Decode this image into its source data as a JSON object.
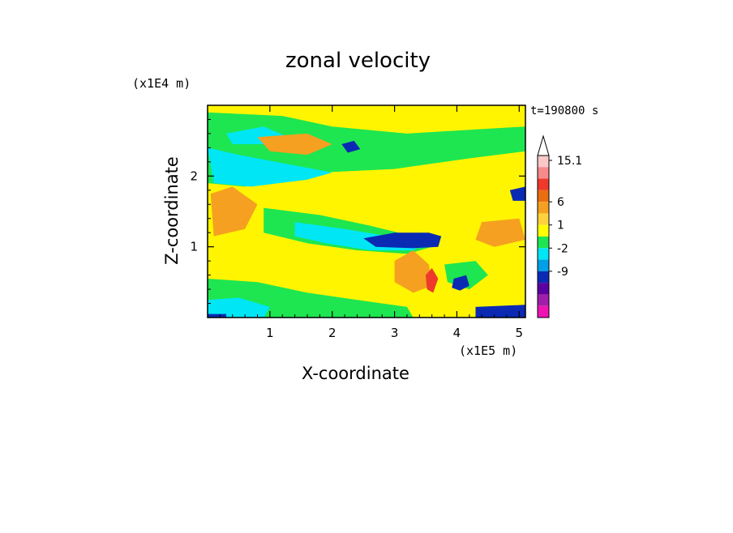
{
  "chart_data": {
    "type": "heatmap",
    "title": "zonal velocity",
    "time_label": "t=190800 s",
    "xlabel": "X-coordinate",
    "ylabel": "Z-coordinate",
    "x_scale_label": "(x1E5 m)",
    "y_scale_label": "(x1E4 m)",
    "x_ticks": [
      "1",
      "2",
      "3",
      "4",
      "5"
    ],
    "y_ticks": [
      "1",
      "2"
    ],
    "xlim": [
      0,
      5.1
    ],
    "ylim": [
      0,
      3.0
    ],
    "colorbar": {
      "levels": [
        "15.1",
        "6",
        "1",
        "-2",
        "-9"
      ],
      "colors": [
        "#fbc8c8",
        "#f78a8a",
        "#ee3a2a",
        "#ea6e10",
        "#f5a020",
        "#ffd23c",
        "#ffff00",
        "#1ee650",
        "#00e6f5",
        "#00a0e6",
        "#0a2ab4",
        "#5a00a0",
        "#a01eaa",
        "#ee14b4"
      ]
    },
    "field": {
      "background": "#fff500",
      "regions": [
        {
          "name": "upper-green-band",
          "color": "#1ee650",
          "pts": [
            [
              0.0,
              2.9
            ],
            [
              1.2,
              2.85
            ],
            [
              2.0,
              2.7
            ],
            [
              3.2,
              2.6
            ],
            [
              5.1,
              2.7
            ],
            [
              5.1,
              2.35
            ],
            [
              4.2,
              2.25
            ],
            [
              3.0,
              2.1
            ],
            [
              1.8,
              2.05
            ],
            [
              0.6,
              1.85
            ],
            [
              0.0,
              1.9
            ]
          ]
        },
        {
          "name": "upper-cyan-band",
          "color": "#00e6f5",
          "pts": [
            [
              0.0,
              2.4
            ],
            [
              0.5,
              2.3
            ],
            [
              1.4,
              2.15
            ],
            [
              2.0,
              2.05
            ],
            [
              1.6,
              1.95
            ],
            [
              0.7,
              1.85
            ],
            [
              0.1,
              1.9
            ]
          ]
        },
        {
          "name": "top-cyan-patch",
          "color": "#00e6f5",
          "pts": [
            [
              0.3,
              2.6
            ],
            [
              0.9,
              2.7
            ],
            [
              1.3,
              2.55
            ],
            [
              0.9,
              2.45
            ],
            [
              0.4,
              2.45
            ]
          ]
        },
        {
          "name": "top-blue-patch",
          "color": "#0a2ab4",
          "pts": [
            [
              2.15,
              2.45
            ],
            [
              2.35,
              2.5
            ],
            [
              2.45,
              2.38
            ],
            [
              2.25,
              2.33
            ]
          ]
        },
        {
          "name": "left-orange-blob",
          "color": "#f5a020",
          "pts": [
            [
              0.05,
              1.75
            ],
            [
              0.4,
              1.85
            ],
            [
              0.8,
              1.6
            ],
            [
              0.6,
              1.25
            ],
            [
              0.1,
              1.15
            ]
          ]
        },
        {
          "name": "upper-orange-blob",
          "color": "#f5a020",
          "pts": [
            [
              0.8,
              2.55
            ],
            [
              1.6,
              2.6
            ],
            [
              2.0,
              2.45
            ],
            [
              1.6,
              2.3
            ],
            [
              1.0,
              2.35
            ]
          ]
        },
        {
          "name": "right-orange-blob",
          "color": "#f5a020",
          "pts": [
            [
              4.4,
              1.35
            ],
            [
              5.0,
              1.4
            ],
            [
              5.1,
              1.1
            ],
            [
              4.6,
              1.0
            ],
            [
              4.3,
              1.1
            ]
          ]
        },
        {
          "name": "mid-green-band",
          "color": "#1ee650",
          "pts": [
            [
              0.9,
              1.55
            ],
            [
              1.8,
              1.45
            ],
            [
              2.6,
              1.3
            ],
            [
              3.3,
              1.15
            ],
            [
              3.6,
              1.0
            ],
            [
              3.2,
              0.9
            ],
            [
              2.4,
              0.95
            ],
            [
              1.6,
              1.05
            ],
            [
              0.9,
              1.2
            ]
          ]
        },
        {
          "name": "mid-cyan-band",
          "color": "#00e6f5",
          "pts": [
            [
              1.4,
              1.35
            ],
            [
              2.2,
              1.25
            ],
            [
              2.9,
              1.15
            ],
            [
              3.5,
              1.05
            ],
            [
              3.3,
              0.95
            ],
            [
              2.6,
              0.95
            ],
            [
              1.9,
              1.05
            ],
            [
              1.4,
              1.15
            ]
          ]
        },
        {
          "name": "mid-blue-band",
          "color": "#0a2ab4",
          "pts": [
            [
              2.5,
              1.12
            ],
            [
              3.0,
              1.2
            ],
            [
              3.55,
              1.2
            ],
            [
              3.75,
              1.15
            ],
            [
              3.7,
              1.0
            ],
            [
              3.3,
              0.98
            ],
            [
              2.7,
              1.0
            ]
          ]
        },
        {
          "name": "center-orange-blob",
          "color": "#f5a020",
          "pts": [
            [
              3.0,
              0.8
            ],
            [
              3.3,
              0.95
            ],
            [
              3.55,
              0.75
            ],
            [
              3.6,
              0.45
            ],
            [
              3.3,
              0.35
            ],
            [
              3.0,
              0.5
            ]
          ]
        },
        {
          "name": "center-red-blob",
          "color": "#ee3a2a",
          "pts": [
            [
              3.5,
              0.6
            ],
            [
              3.6,
              0.7
            ],
            [
              3.7,
              0.55
            ],
            [
              3.62,
              0.35
            ],
            [
              3.52,
              0.4
            ]
          ]
        },
        {
          "name": "right-green-patch",
          "color": "#1ee650",
          "pts": [
            [
              3.8,
              0.75
            ],
            [
              4.3,
              0.8
            ],
            [
              4.5,
              0.6
            ],
            [
              4.2,
              0.4
            ],
            [
              3.85,
              0.5
            ]
          ]
        },
        {
          "name": "right-blue-patch",
          "color": "#0a2ab4",
          "pts": [
            [
              3.95,
              0.55
            ],
            [
              4.15,
              0.6
            ],
            [
              4.2,
              0.45
            ],
            [
              4.05,
              0.38
            ],
            [
              3.92,
              0.42
            ]
          ]
        },
        {
          "name": "bottom-green-band",
          "color": "#1ee650",
          "pts": [
            [
              0.0,
              0.55
            ],
            [
              0.8,
              0.5
            ],
            [
              1.6,
              0.35
            ],
            [
              2.4,
              0.25
            ],
            [
              3.2,
              0.15
            ],
            [
              3.3,
              0.0
            ],
            [
              0.0,
              0.0
            ]
          ]
        },
        {
          "name": "bottom-cyan-patch",
          "color": "#00e6f5",
          "pts": [
            [
              0.0,
              0.25
            ],
            [
              0.5,
              0.28
            ],
            [
              1.0,
              0.15
            ],
            [
              0.9,
              0.0
            ],
            [
              0.0,
              0.0
            ]
          ]
        },
        {
          "name": "bottom-right-blue",
          "color": "#0a2ab4",
          "pts": [
            [
              4.3,
              0.15
            ],
            [
              5.1,
              0.18
            ],
            [
              5.1,
              0.0
            ],
            [
              4.3,
              0.0
            ]
          ]
        },
        {
          "name": "bottom-left-blue",
          "color": "#0a2ab4",
          "pts": [
            [
              0.0,
              0.05
            ],
            [
              0.3,
              0.05
            ],
            [
              0.3,
              0.0
            ],
            [
              0.0,
              0.0
            ]
          ]
        },
        {
          "name": "right-edge-blue",
          "color": "#0a2ab4",
          "pts": [
            [
              4.85,
              1.8
            ],
            [
              5.1,
              1.85
            ],
            [
              5.1,
              1.65
            ],
            [
              4.9,
              1.65
            ]
          ]
        }
      ]
    }
  }
}
